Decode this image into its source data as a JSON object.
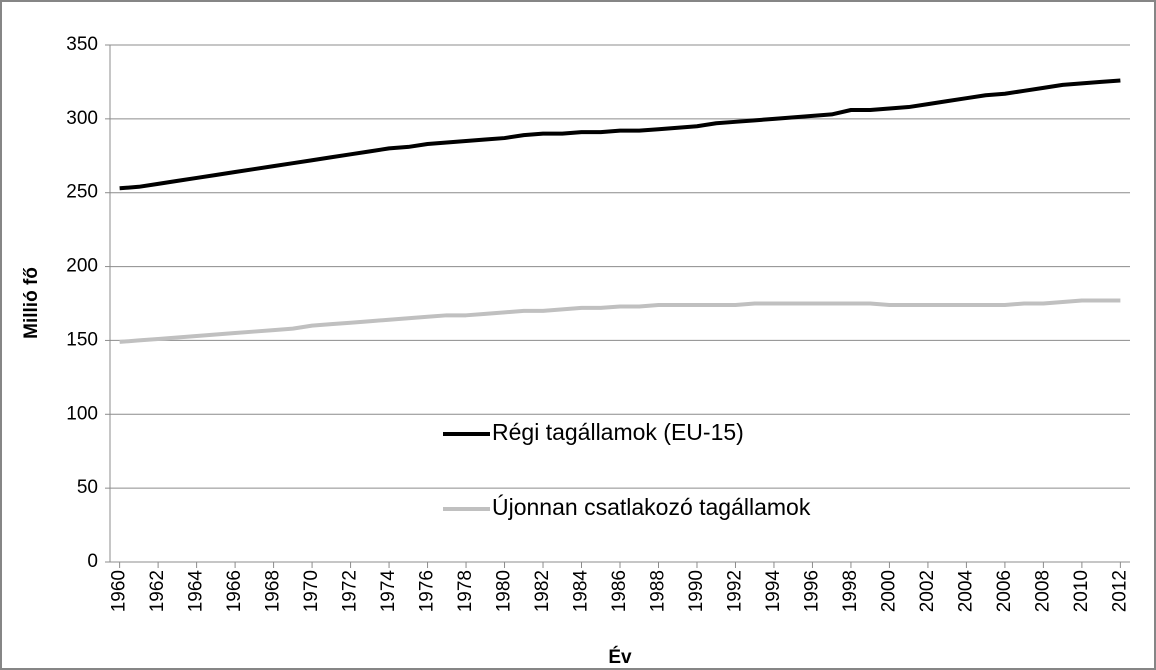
{
  "chart_data": {
    "type": "line",
    "y_label": "Millió fő",
    "x_label": "Év",
    "x": [
      1960,
      1961,
      1962,
      1963,
      1964,
      1965,
      1966,
      1967,
      1968,
      1969,
      1970,
      1971,
      1972,
      1973,
      1974,
      1975,
      1976,
      1977,
      1978,
      1979,
      1980,
      1981,
      1982,
      1983,
      1984,
      1985,
      1986,
      1987,
      1988,
      1989,
      1990,
      1991,
      1992,
      1993,
      1994,
      1995,
      1996,
      1997,
      1998,
      1999,
      2000,
      2001,
      2002,
      2003,
      2004,
      2005,
      2006,
      2007,
      2008,
      2009,
      2010,
      2011,
      2012
    ],
    "series": [
      {
        "name": "Régi tagállamok (EU-15)",
        "color": "#000000",
        "values": [
          253,
          254,
          256,
          258,
          260,
          262,
          264,
          266,
          268,
          270,
          272,
          274,
          276,
          278,
          280,
          281,
          283,
          284,
          285,
          286,
          287,
          289,
          290,
          290,
          291,
          291,
          292,
          292,
          293,
          294,
          295,
          297,
          298,
          299,
          300,
          301,
          302,
          303,
          306,
          306,
          307,
          308,
          310,
          312,
          314,
          316,
          317,
          319,
          321,
          323,
          324,
          325,
          326
        ]
      },
      {
        "name": "Újonnan csatlakozó tagállamok",
        "color": "#c0c0c0",
        "values": [
          149,
          150,
          151,
          152,
          153,
          154,
          155,
          156,
          157,
          158,
          160,
          161,
          162,
          163,
          164,
          165,
          166,
          167,
          167,
          168,
          169,
          170,
          170,
          171,
          172,
          172,
          173,
          173,
          174,
          174,
          174,
          174,
          174,
          175,
          175,
          175,
          175,
          175,
          175,
          175,
          174,
          174,
          174,
          174,
          174,
          174,
          174,
          175,
          175,
          176,
          177,
          177,
          177
        ]
      }
    ],
    "xlim": [
      1959.5,
      2012.5
    ],
    "xticks": [
      1960,
      1962,
      1964,
      1966,
      1968,
      1970,
      1972,
      1974,
      1976,
      1978,
      1980,
      1982,
      1984,
      1986,
      1988,
      1990,
      1992,
      1994,
      1996,
      1998,
      2000,
      2002,
      2004,
      2006,
      2008,
      2010,
      2012
    ],
    "ylim": [
      0,
      350
    ],
    "yticks": [
      0,
      50,
      100,
      150,
      200,
      250,
      300,
      350
    ],
    "grid": true
  }
}
